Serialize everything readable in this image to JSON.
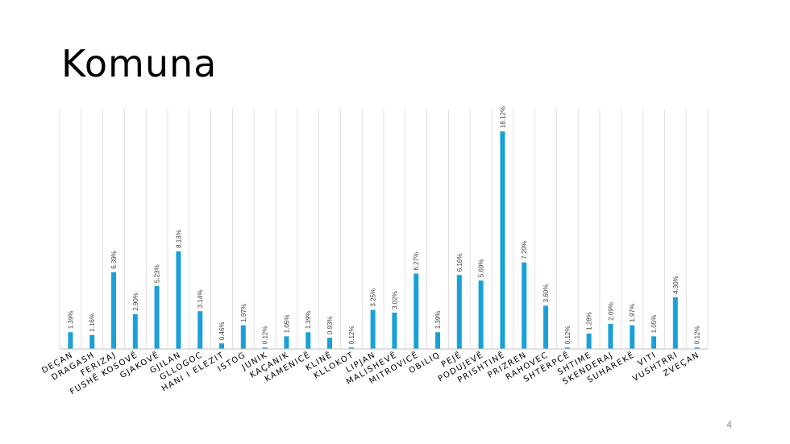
{
  "slide": {
    "title": "Komuna",
    "page_number": "4"
  },
  "colors": {
    "bar": "#1aa0d8",
    "gridline": "#d9d9d9",
    "axis": "#bfbfbf"
  },
  "chart_data": {
    "type": "bar",
    "title": "",
    "xlabel": "",
    "ylabel": "",
    "ylim": [
      0,
      20
    ],
    "grid": true,
    "categories": [
      "DEÇAN",
      "DRAGASH",
      "FERIZAJ",
      "FUSHË KOSOVË",
      "GJAKOVË",
      "GJILAN",
      "GLLOGOC",
      "HANI I ELEZIT",
      "ISTOG",
      "JUNIK",
      "KAÇANIK",
      "KAMENICË",
      "KLINË",
      "KLLOKOT",
      "LIPJAN",
      "MALISHEVË",
      "MITROVICË",
      "OBILIQ",
      "PEJË",
      "PODUJEVË",
      "PRISHTINË",
      "PRIZREN",
      "RAHOVEC",
      "SHTËRPCË",
      "SHTIME",
      "SKENDERAJ",
      "SUHAREKË",
      "VITI",
      "VUSHTRRI",
      "ZVEÇAN"
    ],
    "values": [
      1.39,
      1.16,
      6.39,
      2.9,
      5.23,
      8.13,
      3.14,
      0.46,
      1.97,
      0.12,
      1.05,
      1.39,
      0.93,
      0.12,
      3.25,
      3.02,
      6.27,
      1.39,
      6.16,
      5.69,
      18.12,
      7.2,
      3.6,
      0.12,
      1.28,
      2.09,
      1.97,
      1.05,
      4.3,
      0.12
    ],
    "data_labels": [
      "1.39%",
      "1.16%",
      "6.39%",
      "2.90%",
      "5.23%",
      "8.13%",
      "3.14%",
      "0.46%",
      "1.97%",
      "0.12%",
      "1.05%",
      "1.39%",
      "0.93%",
      "0.12%",
      "3.25%",
      "3.02%",
      "6.27%",
      "1.39%",
      "6.16%",
      "5.69%",
      "18.12%",
      "7.20%",
      "3.60%",
      "0.12%",
      "1.28%",
      "2.09%",
      "1.97%",
      "1.05%",
      "4.30%",
      "0.12%"
    ]
  }
}
